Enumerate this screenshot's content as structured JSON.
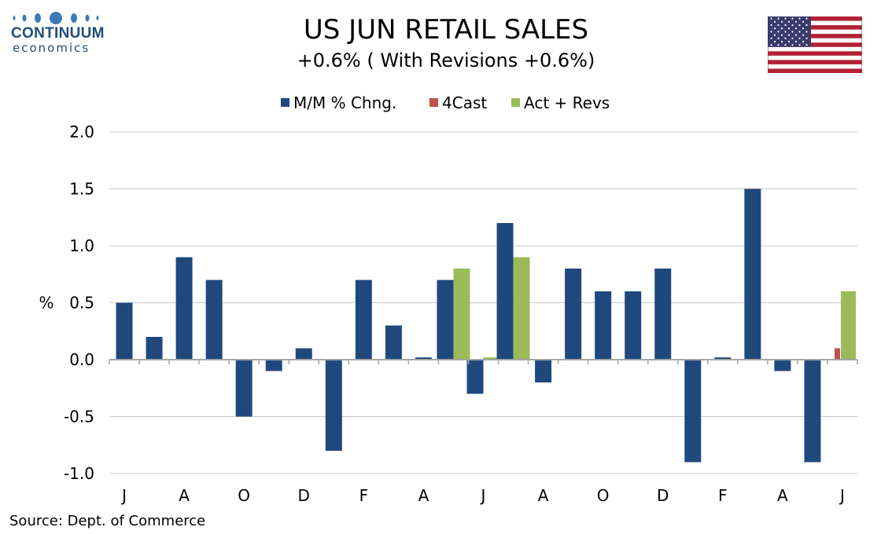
{
  "logo": {
    "name": "CONTINUUM",
    "sub": "economics"
  },
  "title": "US JUN RETAIL SALES",
  "subtitle": "+0.6% ( With Revisions +0.6%)",
  "source": "Source: Dept. of Commerce",
  "chart_data": {
    "type": "bar",
    "ylabel": "%",
    "ylim": [
      -1.0,
      2.0
    ],
    "yticks": [
      "2.0",
      "1.5",
      "1.0",
      "0.5",
      "0.0",
      "-0.5",
      "-1.0"
    ],
    "ytick_values": [
      2.0,
      1.5,
      1.0,
      0.5,
      0.0,
      -0.5,
      -1.0
    ],
    "xtick_labels": [
      "J",
      "A",
      "O",
      "D",
      "F",
      "A",
      "J",
      "A",
      "O",
      "D",
      "F",
      "A",
      "J"
    ],
    "grid": true,
    "legend_position": "top-center",
    "series": [
      {
        "name": "M/M % Chng.",
        "color": "#1f497d",
        "values": [
          0.5,
          0.2,
          0.9,
          0.7,
          -0.5,
          -0.1,
          0.1,
          -0.8,
          0.7,
          0.3,
          0.02,
          0.7,
          -0.3,
          1.2,
          -0.2,
          0.8,
          0.6,
          0.6,
          0.8,
          -0.9,
          0.02,
          1.5,
          -0.1,
          -0.9,
          null
        ]
      },
      {
        "name": "4Cast",
        "color": "#c0504d",
        "values": [
          null,
          null,
          null,
          null,
          null,
          null,
          null,
          null,
          null,
          null,
          null,
          null,
          null,
          null,
          null,
          null,
          null,
          null,
          null,
          null,
          null,
          null,
          null,
          null,
          0.1
        ]
      },
      {
        "name": "Act + Revs",
        "color": "#9bbb59",
        "values": [
          null,
          null,
          null,
          null,
          null,
          null,
          null,
          null,
          null,
          null,
          null,
          0.8,
          0.02,
          0.9,
          null,
          null,
          null,
          null,
          null,
          null,
          null,
          null,
          null,
          null,
          0.6
        ]
      }
    ]
  }
}
